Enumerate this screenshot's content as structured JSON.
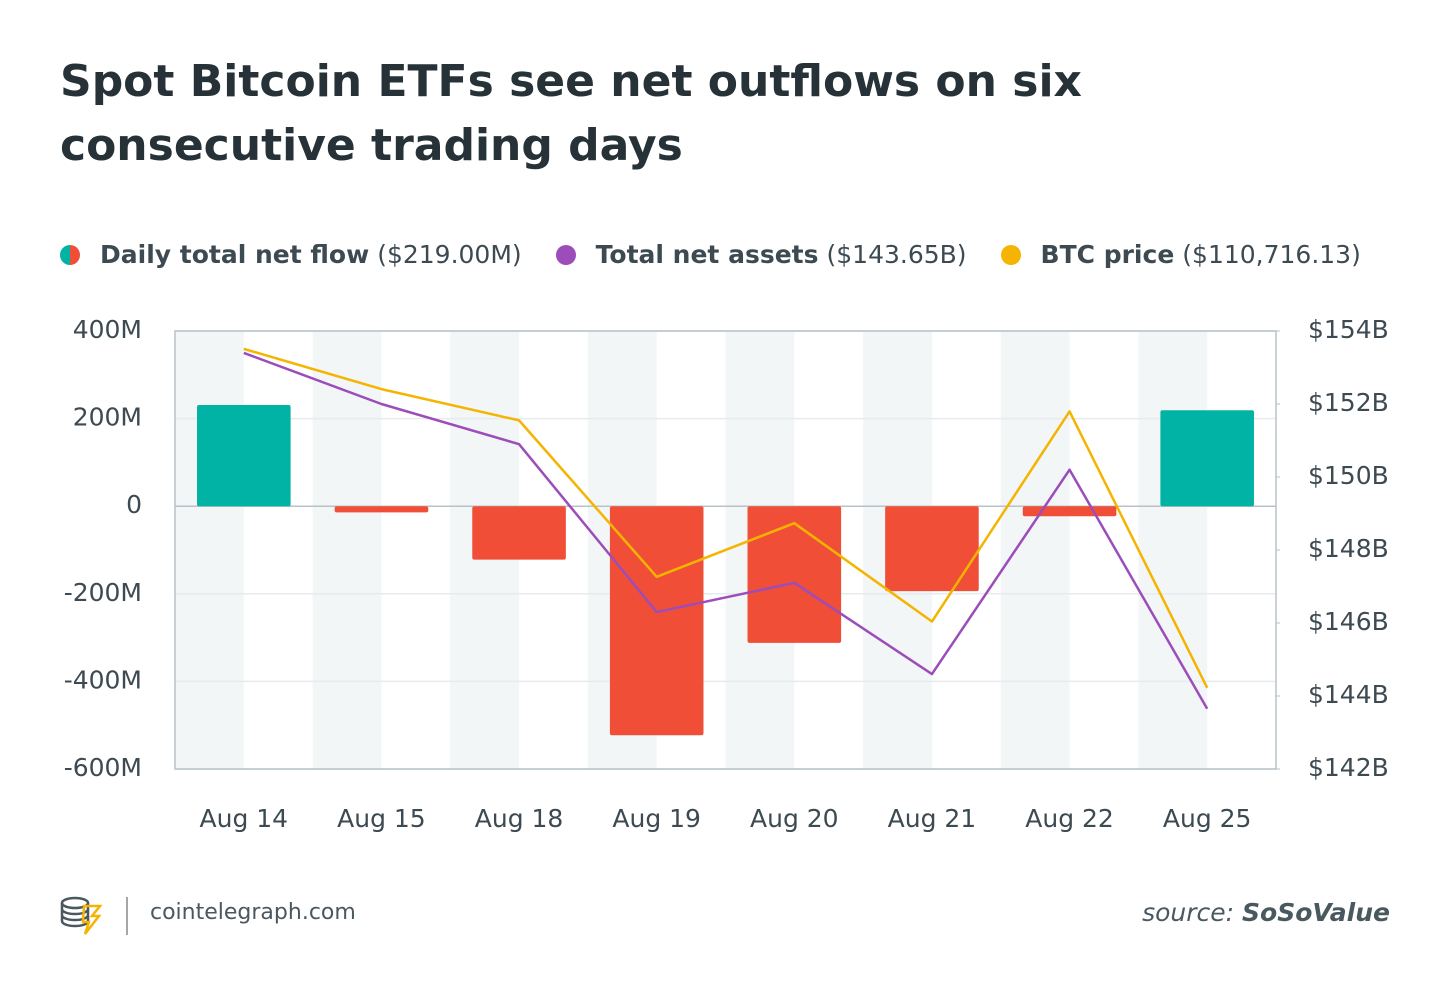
{
  "chart_data": {
    "type": "bar-line",
    "title": "Spot Bitcoin ETFs see net outflows on six consecutive trading days",
    "categories": [
      "Aug 14",
      "Aug 15",
      "Aug 18",
      "Aug 19",
      "Aug 20",
      "Aug 21",
      "Aug 22",
      "Aug 25"
    ],
    "series": [
      {
        "name": "Daily total net flow",
        "legend_label": "($219.00M)",
        "type": "bar",
        "color": "#00b3a4",
        "negative_color": "#f04e37",
        "values": [
          231,
          -14,
          -122,
          -523,
          -312,
          -194,
          -23,
          219
        ]
      },
      {
        "name": "Total net assets",
        "legend_label": "($143.65B)",
        "type": "line",
        "axis": "y2",
        "color": "#9c4dba",
        "values": [
          153.4,
          152.0,
          150.9,
          146.3,
          147.1,
          144.6,
          150.2,
          143.65
        ]
      },
      {
        "name": "BTC price",
        "legend_label": "($110,716.13)",
        "type": "line",
        "axis": "y3",
        "color": "#f4b400",
        "values": [
          118300,
          117400,
          116700,
          113200,
          114400,
          112200,
          116900,
          110716.13
        ]
      }
    ],
    "ylim": [
      -600,
      400
    ],
    "yticks": [
      {
        "value": 400,
        "label": "400M"
      },
      {
        "value": 200,
        "label": "200M"
      },
      0,
      {
        "value": -200,
        "label": "-200M"
      },
      {
        "value": -400,
        "label": "-400M"
      },
      {
        "value": -600,
        "label": "-600M"
      }
    ],
    "y2lim": [
      142,
      154
    ],
    "y2ticks": [
      {
        "value": 154,
        "label": "$154B"
      },
      {
        "value": 152,
        "label": "$152B"
      },
      {
        "value": 150,
        "label": "$150B"
      },
      {
        "value": 148,
        "label": "$148B"
      },
      {
        "value": 146,
        "label": "$146B"
      },
      {
        "value": 144,
        "label": "$144B"
      },
      {
        "value": 142,
        "label": "$142B"
      }
    ],
    "y3lim": [
      108900,
      118700
    ],
    "grid": true
  },
  "footer": {
    "site": "cointelegraph.com",
    "source_label": "source:",
    "source": "SoSoValue"
  }
}
